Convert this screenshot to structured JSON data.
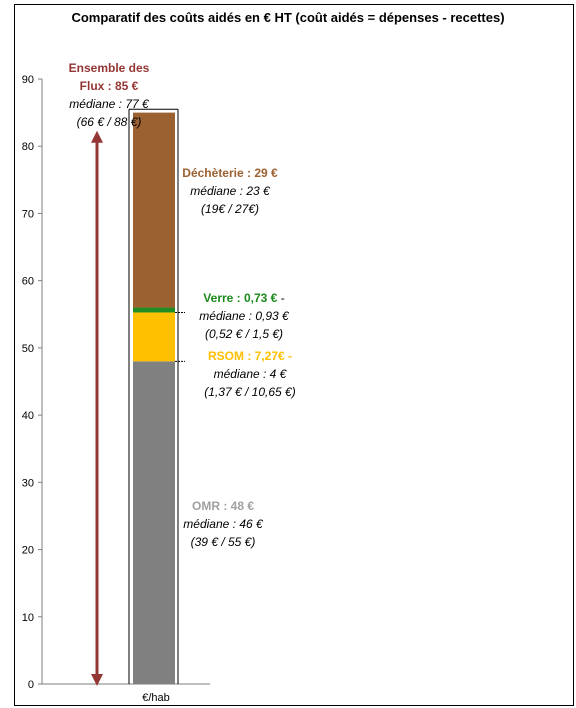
{
  "chart_data": {
    "type": "bar",
    "title": "Comparatif des coûts aidés en € HT (coût aidés = dépenses - recettes)",
    "categories": [
      "€/hab"
    ],
    "ylim": [
      0,
      90
    ],
    "yticks": [
      "0",
      "10",
      "20",
      "30",
      "40",
      "50",
      "60",
      "70",
      "80",
      "90"
    ],
    "stacked": true,
    "series": [
      {
        "key": "omr",
        "color": "#808080",
        "value": 48,
        "label": "OMR : 48 €",
        "label_color": "#a0a0a0",
        "median": "médiane : 46 €",
        "range": "(39 € / 55 €)"
      },
      {
        "key": "rsom",
        "color": "#ffc000",
        "value": 7.27,
        "label": "RSOM : 7,27€  -",
        "label_color": "#ffc000",
        "median": "médiane : 4 €",
        "range": "(1,37 € / 10,65 €)"
      },
      {
        "key": "verre",
        "color": "#228b22",
        "value": 0.73,
        "label": "Verre : 0,73 €",
        "label_suffix": " -",
        "label_color": "#1a8a1a",
        "median": "médiane : 0,93 €",
        "range": "(0,52 € / 1,5 €)"
      },
      {
        "key": "decheterie",
        "color": "#9c6131",
        "value": 29,
        "label": "Déchèterie : 29 €",
        "label_color": "#9c6131",
        "median": "médiane : 23 €",
        "range": "(19€ / 27€)"
      }
    ],
    "total": {
      "value": 85,
      "line1": "Ensemble des",
      "line2": "Flux : 85 €",
      "color": "#943634",
      "median": "médiane : 77 €",
      "range": "(66 € / 88 €)"
    }
  }
}
